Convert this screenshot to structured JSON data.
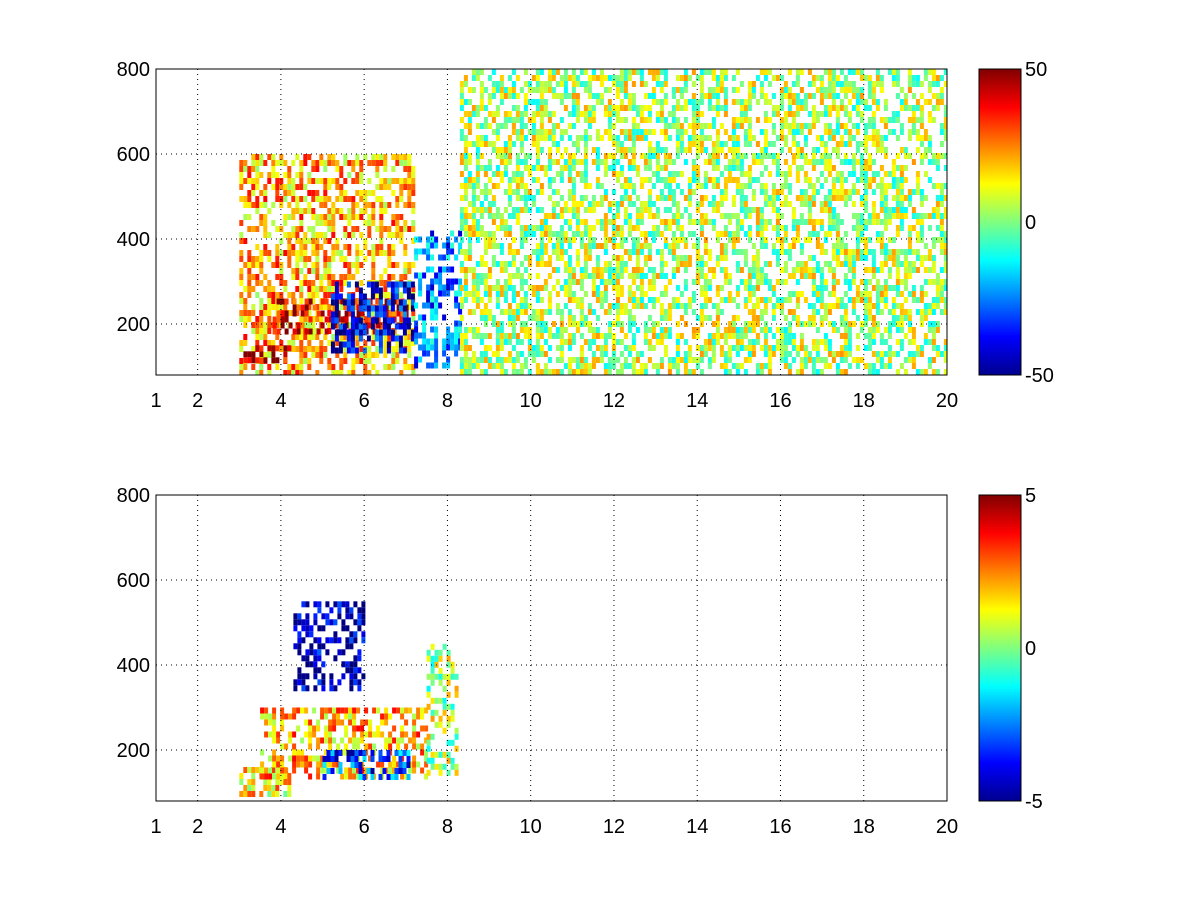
{
  "chart_data": [
    {
      "type": "heatmap",
      "title": "",
      "xlabel": "",
      "ylabel": "",
      "x_ticks": [
        "1",
        "2",
        "4",
        "6",
        "8",
        "10",
        "12",
        "14",
        "16",
        "18",
        "20"
      ],
      "x_tick_values": [
        1,
        2,
        4,
        6,
        8,
        10,
        12,
        14,
        16,
        18,
        20
      ],
      "y_ticks": [
        "200",
        "400",
        "600",
        "800"
      ],
      "y_tick_values": [
        200,
        400,
        600,
        800
      ],
      "xlim": [
        1,
        20
      ],
      "ylim": [
        80,
        800
      ],
      "grid": true,
      "colormap": "jet",
      "color_range": [
        -50,
        50
      ],
      "colorbar_labels": [
        "50",
        "0",
        "-50"
      ],
      "colorbar_values": [
        50,
        0,
        -50
      ],
      "regions": [
        {
          "x": [
            3.0,
            7.2
          ],
          "y": [
            80,
            600
          ],
          "value": 20
        },
        {
          "x": [
            3.1,
            4.2
          ],
          "y": [
            110,
            150
          ],
          "value": 45
        },
        {
          "x": [
            3.8,
            7.0
          ],
          "y": [
            180,
            260
          ],
          "value": 40
        },
        {
          "x": [
            5.2,
            7.2
          ],
          "y": [
            140,
            300
          ],
          "value": -40
        },
        {
          "x": [
            7.2,
            8.3
          ],
          "y": [
            100,
            420
          ],
          "value": -25
        },
        {
          "x": [
            8.3,
            20.0
          ],
          "y": [
            80,
            800
          ],
          "value": 5
        }
      ]
    },
    {
      "type": "heatmap",
      "title": "",
      "xlabel": "",
      "ylabel": "",
      "x_ticks": [
        "1",
        "2",
        "4",
        "6",
        "8",
        "10",
        "12",
        "14",
        "16",
        "18",
        "20"
      ],
      "x_tick_values": [
        1,
        2,
        4,
        6,
        8,
        10,
        12,
        14,
        16,
        18,
        20
      ],
      "y_ticks": [
        "200",
        "400",
        "600",
        "800"
      ],
      "y_tick_values": [
        200,
        400,
        600,
        800
      ],
      "xlim": [
        1,
        20
      ],
      "ylim": [
        80,
        800
      ],
      "grid": true,
      "colormap": "jet",
      "color_range": [
        -5,
        5
      ],
      "colorbar_labels": [
        "5",
        "0",
        "-5"
      ],
      "colorbar_values": [
        5,
        0,
        -5
      ],
      "regions": [
        {
          "x": [
            3.0,
            4.2
          ],
          "y": [
            90,
            160
          ],
          "value": 1.5
        },
        {
          "x": [
            4.3,
            6.0
          ],
          "y": [
            350,
            550
          ],
          "value": -4.5
        },
        {
          "x": [
            3.5,
            7.5
          ],
          "y": [
            140,
            300
          ],
          "value": 2
        },
        {
          "x": [
            5.0,
            7.2
          ],
          "y": [
            140,
            200
          ],
          "value": -3
        },
        {
          "x": [
            7.5,
            8.2
          ],
          "y": [
            150,
            450
          ],
          "value": 0.5
        }
      ]
    }
  ]
}
